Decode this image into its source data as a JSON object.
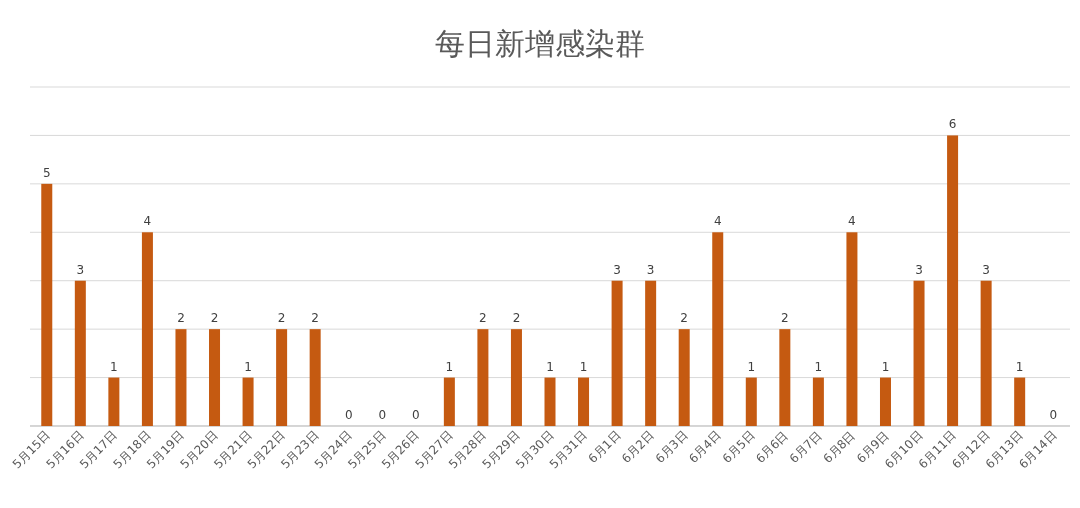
{
  "chart_data": {
    "type": "bar",
    "title": "每日新增感染群",
    "categories": [
      "5月15日",
      "5月16日",
      "5月17日",
      "5月18日",
      "5月19日",
      "5月20日",
      "5月21日",
      "5月22日",
      "5月23日",
      "5月24日",
      "5月25日",
      "5月26日",
      "5月27日",
      "5月28日",
      "5月29日",
      "5月30日",
      "5月31日",
      "6月1日",
      "6月2日",
      "6月3日",
      "6月4日",
      "6月5日",
      "6月6日",
      "6月7日",
      "6月8日",
      "6月9日",
      "6月10日",
      "6月11日",
      "6月12日",
      "6月13日",
      "6月14日"
    ],
    "values": [
      5,
      3,
      1,
      4,
      2,
      2,
      1,
      2,
      2,
      0,
      0,
      0,
      1,
      2,
      2,
      1,
      1,
      3,
      3,
      2,
      4,
      1,
      2,
      1,
      4,
      1,
      3,
      6,
      3,
      1,
      0
    ],
    "color": "#c55a11",
    "ylim": [
      0,
      7
    ],
    "yticks": [
      {
        "value": 0,
        "label": null
      },
      {
        "value": 1,
        "label": null
      },
      {
        "value": 2,
        "label": null
      },
      {
        "value": 3,
        "label": null
      },
      {
        "value": 4,
        "label": null
      },
      {
        "value": 5,
        "label": null
      },
      {
        "value": 6,
        "label": null
      },
      {
        "value": 7,
        "label": null
      }
    ],
    "grid": "y",
    "data_labels": true,
    "tick_labels": "x"
  }
}
